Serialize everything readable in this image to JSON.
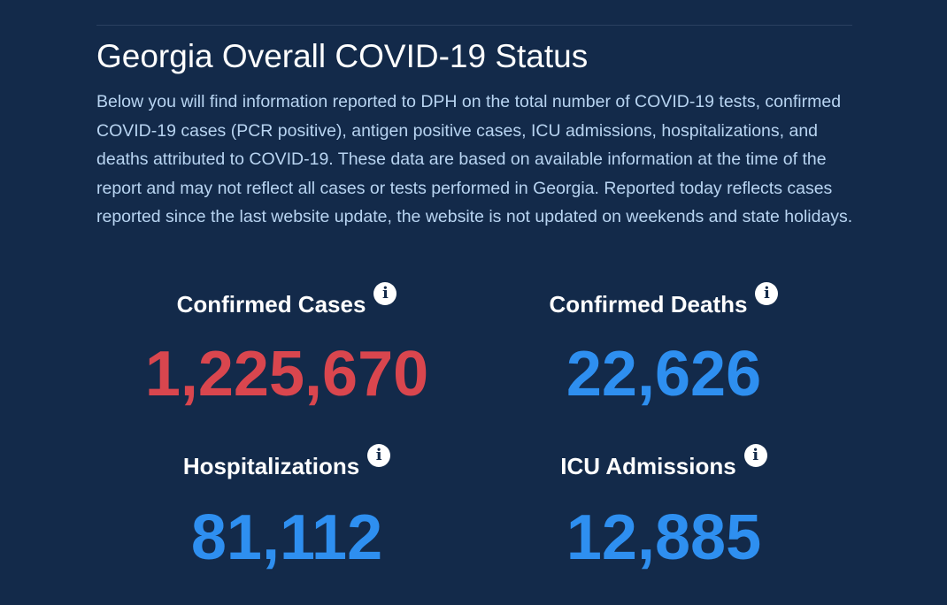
{
  "page": {
    "title": "Georgia Overall COVID-19 Status",
    "description": "Below you will find information reported to DPH on the total number of COVID-19 tests, confirmed COVID-19 cases (PCR positive), antigen positive cases, ICU admissions, hospitalizations, and deaths attributed to COVID-19. These data are based on available information at the time of the report and may not reflect all cases or tests performed in Georgia. Reported today reflects cases reported since the last website update, the website is not updated on weekends and state holidays."
  },
  "stats": {
    "confirmed_cases": {
      "label": "Confirmed Cases",
      "value": "1,225,670",
      "color": "#d9464e"
    },
    "confirmed_deaths": {
      "label": "Confirmed Deaths",
      "value": "22,626",
      "color": "#2e8ff0"
    },
    "hospitalizations": {
      "label": "Hospitalizations",
      "value": "81,112",
      "color": "#2e8ff0"
    },
    "icu_admissions": {
      "label": "ICU Admissions",
      "value": "12,885",
      "color": "#2e8ff0"
    }
  },
  "icons": {
    "info": {
      "name": "info-icon",
      "glyph": "i"
    }
  },
  "colors": {
    "background": "#132a4a",
    "description_text": "#b8d4f1",
    "title_text": "#ffffff"
  }
}
